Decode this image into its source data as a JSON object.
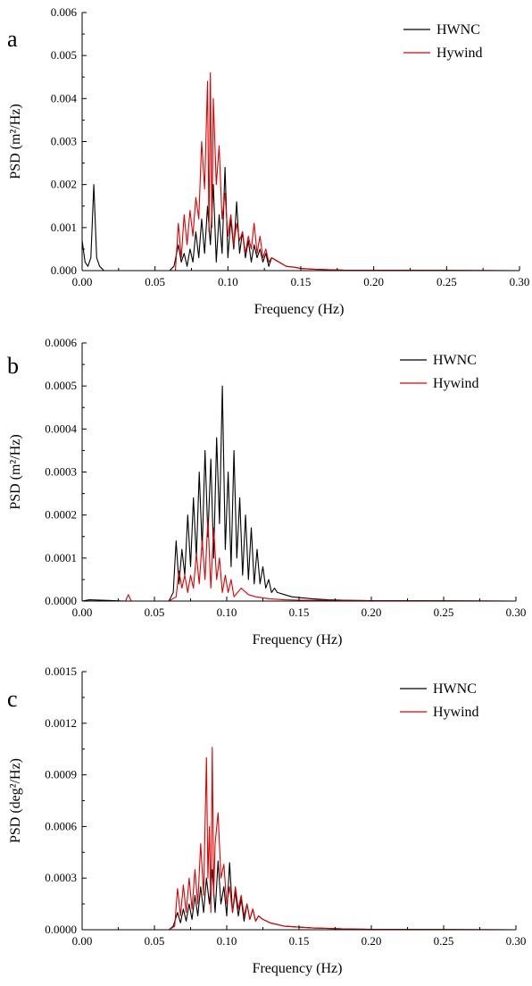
{
  "figure": {
    "panels": [
      {
        "letter": "a"
      },
      {
        "letter": "b"
      },
      {
        "letter": "c"
      }
    ]
  },
  "chart_data": [
    {
      "type": "line",
      "panel_label": "a",
      "xlabel": "Frequency (Hz)",
      "ylabel": "PSD (m²/Hz)",
      "xlim": [
        0,
        0.3
      ],
      "ylim": [
        0,
        0.006
      ],
      "xticks": [
        "0.00",
        "0.05",
        "0.10",
        "0.15",
        "0.20",
        "0.25",
        "0.30"
      ],
      "yticks": [
        "0.000",
        "0.001",
        "0.002",
        "0.003",
        "0.004",
        "0.005",
        "0.006"
      ],
      "legend_position": "top-right",
      "series": [
        {
          "name": "HWNC",
          "color": "#000000",
          "x": [
            0.0,
            0.002,
            0.004,
            0.006,
            0.008,
            0.01,
            0.012,
            0.015,
            0.03,
            0.06,
            0.063,
            0.066,
            0.068,
            0.07,
            0.072,
            0.074,
            0.076,
            0.078,
            0.08,
            0.082,
            0.084,
            0.086,
            0.088,
            0.09,
            0.092,
            0.094,
            0.096,
            0.098,
            0.1,
            0.102,
            0.104,
            0.106,
            0.108,
            0.11,
            0.112,
            0.114,
            0.116,
            0.118,
            0.12,
            0.122,
            0.124,
            0.126,
            0.128,
            0.13,
            0.135,
            0.14,
            0.145,
            0.15,
            0.16,
            0.17,
            0.18,
            0.2,
            0.3
          ],
          "values": [
            0.0007,
            0.0002,
            0.0001,
            0.0003,
            0.002,
            0.0003,
            0.0001,
            0.0,
            0.0,
            0.0,
            0.0001,
            0.0006,
            0.0002,
            0.0004,
            0.0001,
            0.0005,
            0.0002,
            0.0009,
            0.0003,
            0.0012,
            0.0004,
            0.0015,
            0.0006,
            0.002,
            0.0002,
            0.0013,
            0.0004,
            0.0024,
            0.0003,
            0.0012,
            0.0005,
            0.0016,
            0.0004,
            0.0009,
            0.0003,
            0.0007,
            0.0002,
            0.0006,
            0.0003,
            0.0005,
            0.0002,
            0.0004,
            0.0001,
            0.0003,
            0.0002,
            0.0001,
            8e-05,
            5e-05,
            3e-05,
            2e-05,
            1e-05,
            1e-05,
            0.0
          ]
        },
        {
          "name": "Hywind",
          "color": "#e00000",
          "x": [
            0.0,
            0.03,
            0.06,
            0.064,
            0.066,
            0.068,
            0.07,
            0.072,
            0.074,
            0.076,
            0.078,
            0.08,
            0.082,
            0.084,
            0.086,
            0.087,
            0.088,
            0.089,
            0.09,
            0.092,
            0.094,
            0.096,
            0.098,
            0.1,
            0.102,
            0.104,
            0.106,
            0.108,
            0.11,
            0.112,
            0.114,
            0.116,
            0.118,
            0.12,
            0.122,
            0.124,
            0.126,
            0.128,
            0.13,
            0.135,
            0.14,
            0.145,
            0.15,
            0.16,
            0.17,
            0.18,
            0.2,
            0.3
          ],
          "values": [
            0.0,
            0.0,
            0.0,
            0.0,
            0.0011,
            0.0003,
            0.0013,
            0.0006,
            0.0014,
            0.0008,
            0.0017,
            0.0012,
            0.003,
            0.0019,
            0.0044,
            0.0009,
            0.0046,
            0.001,
            0.004,
            0.002,
            0.0029,
            0.0012,
            0.0018,
            0.0008,
            0.0013,
            0.0006,
            0.0011,
            0.0007,
            0.0009,
            0.0004,
            0.0008,
            0.0005,
            0.0011,
            0.0004,
            0.0008,
            0.0003,
            0.0005,
            0.0002,
            0.0003,
            0.0002,
            0.0001,
            8e-05,
            5e-05,
            3e-05,
            2e-05,
            1e-05,
            1e-05,
            0.0
          ]
        }
      ]
    },
    {
      "type": "line",
      "panel_label": "b",
      "xlabel": "Frequency (Hz)",
      "ylabel": "PSD (m²/Hz)",
      "xlim": [
        0,
        0.3
      ],
      "ylim": [
        0,
        0.0006
      ],
      "xticks": [
        "0.00",
        "0.05",
        "0.10",
        "0.15",
        "0.20",
        "0.25",
        "0.30"
      ],
      "yticks": [
        "0.0000",
        "0.0001",
        "0.0002",
        "0.0003",
        "0.0004",
        "0.0005",
        "0.0006"
      ],
      "legend_position": "top-right",
      "series": [
        {
          "name": "HWNC",
          "color": "#000000",
          "x": [
            0.0,
            0.005,
            0.03,
            0.06,
            0.063,
            0.065,
            0.067,
            0.069,
            0.071,
            0.073,
            0.075,
            0.077,
            0.079,
            0.081,
            0.083,
            0.085,
            0.087,
            0.089,
            0.091,
            0.093,
            0.095,
            0.097,
            0.099,
            0.101,
            0.103,
            0.105,
            0.107,
            0.109,
            0.111,
            0.113,
            0.115,
            0.117,
            0.119,
            0.121,
            0.123,
            0.125,
            0.127,
            0.129,
            0.131,
            0.133,
            0.135,
            0.14,
            0.145,
            0.15,
            0.16,
            0.17,
            0.18,
            0.2,
            0.3
          ],
          "values": [
            0.0,
            3e-06,
            0.0,
            0.0,
            2e-05,
            0.00014,
            4e-05,
            0.00012,
            6e-05,
            0.0002,
            8e-05,
            0.00024,
            0.0001,
            0.0003,
            0.00012,
            0.00035,
            0.00015,
            0.00033,
            0.0001,
            0.00038,
            0.00018,
            0.0005,
            0.00012,
            0.0003,
            8e-05,
            0.00035,
            0.0001,
            0.00024,
            6e-05,
            0.0002,
            5e-05,
            0.00017,
            4e-05,
            0.00012,
            4e-05,
            8e-05,
            3e-05,
            5e-05,
            2e-05,
            3e-05,
            2e-05,
            1.5e-05,
            1e-05,
            8e-06,
            5e-06,
            3e-06,
            2e-06,
            1e-06,
            0.0
          ]
        },
        {
          "name": "Hywind",
          "color": "#e00000",
          "x": [
            0.0,
            0.01,
            0.03,
            0.032,
            0.034,
            0.06,
            0.065,
            0.067,
            0.069,
            0.071,
            0.073,
            0.075,
            0.077,
            0.079,
            0.081,
            0.083,
            0.085,
            0.087,
            0.089,
            0.091,
            0.093,
            0.095,
            0.097,
            0.099,
            0.101,
            0.103,
            0.105,
            0.11,
            0.115,
            0.12,
            0.13,
            0.14,
            0.15,
            0.2,
            0.3
          ],
          "values": [
            0.0,
            0.0,
            0.0,
            1.5e-05,
            0.0,
            0.0,
            1e-05,
            7e-05,
            3e-05,
            6e-05,
            2e-05,
            6e-05,
            3e-05,
            0.00011,
            4e-05,
            0.00014,
            5e-05,
            0.00019,
            3e-05,
            0.00017,
            5e-05,
            0.0001,
            2e-05,
            6e-05,
            2e-05,
            5e-05,
            1e-05,
            3e-05,
            1.5e-05,
            1e-05,
            5e-06,
            3e-06,
            2e-06,
            1e-06,
            0.0
          ]
        }
      ]
    },
    {
      "type": "line",
      "panel_label": "c",
      "xlabel": "Frequency (Hz)",
      "ylabel": "PSD (deg²/Hz)",
      "xlim": [
        0,
        0.3
      ],
      "ylim": [
        0,
        0.0015
      ],
      "xticks": [
        "0.00",
        "0.05",
        "0.10",
        "0.15",
        "0.20",
        "0.25",
        "0.30"
      ],
      "yticks": [
        "0.0000",
        "0.0003",
        "0.0006",
        "0.0009",
        "0.0012",
        "0.0015"
      ],
      "legend_position": "top-right",
      "series": [
        {
          "name": "HWNC",
          "color": "#000000",
          "x": [
            0.0,
            0.03,
            0.06,
            0.063,
            0.066,
            0.068,
            0.07,
            0.072,
            0.074,
            0.076,
            0.078,
            0.08,
            0.082,
            0.084,
            0.086,
            0.088,
            0.09,
            0.092,
            0.094,
            0.096,
            0.098,
            0.1,
            0.102,
            0.104,
            0.106,
            0.108,
            0.11,
            0.112,
            0.114,
            0.116,
            0.118,
            0.12,
            0.122,
            0.125,
            0.13,
            0.135,
            0.14,
            0.15,
            0.16,
            0.18,
            0.2,
            0.3
          ],
          "values": [
            0.0,
            0.0,
            0.0,
            2e-05,
            0.0001,
            4e-05,
            0.00012,
            5e-05,
            0.00015,
            6e-05,
            0.0002,
            8e-05,
            0.00025,
            0.0001,
            0.0003,
            0.00015,
            0.00035,
            0.0001,
            0.0004,
            0.00015,
            0.00025,
            8e-05,
            0.00039,
            0.0001,
            0.00022,
            8e-05,
            0.00018,
            5e-05,
            0.00015,
            6e-05,
            0.00012,
            5e-05,
            8e-05,
            6e-05,
            4e-05,
            3e-05,
            2e-05,
            1.5e-05,
            1e-05,
            5e-06,
            2e-06,
            0.0
          ]
        },
        {
          "name": "Hywind",
          "color": "#e00000",
          "x": [
            0.0,
            0.03,
            0.06,
            0.064,
            0.066,
            0.068,
            0.07,
            0.072,
            0.074,
            0.076,
            0.078,
            0.08,
            0.082,
            0.084,
            0.086,
            0.087,
            0.088,
            0.089,
            0.09,
            0.091,
            0.092,
            0.094,
            0.096,
            0.098,
            0.1,
            0.102,
            0.104,
            0.106,
            0.108,
            0.11,
            0.112,
            0.114,
            0.116,
            0.118,
            0.12,
            0.122,
            0.125,
            0.13,
            0.135,
            0.14,
            0.15,
            0.16,
            0.18,
            0.2,
            0.3
          ],
          "values": [
            0.0,
            0.0,
            0.0,
            2e-05,
            0.00024,
            8e-05,
            0.00026,
            0.0001,
            0.0003,
            0.00012,
            0.00035,
            0.00015,
            0.0005,
            0.0002,
            0.001,
            0.0003,
            0.0006,
            0.0001,
            0.00106,
            0.0002,
            0.0005,
            0.00068,
            0.0003,
            0.00038,
            0.00015,
            0.00025,
            0.0001,
            0.00025,
            0.00012,
            0.0002,
            8e-05,
            0.00015,
            6e-05,
            0.00012,
            5e-05,
            8e-05,
            6e-05,
            4e-05,
            3e-05,
            2e-05,
            1.5e-05,
            1e-05,
            5e-06,
            2e-06,
            0.0
          ]
        }
      ]
    }
  ]
}
